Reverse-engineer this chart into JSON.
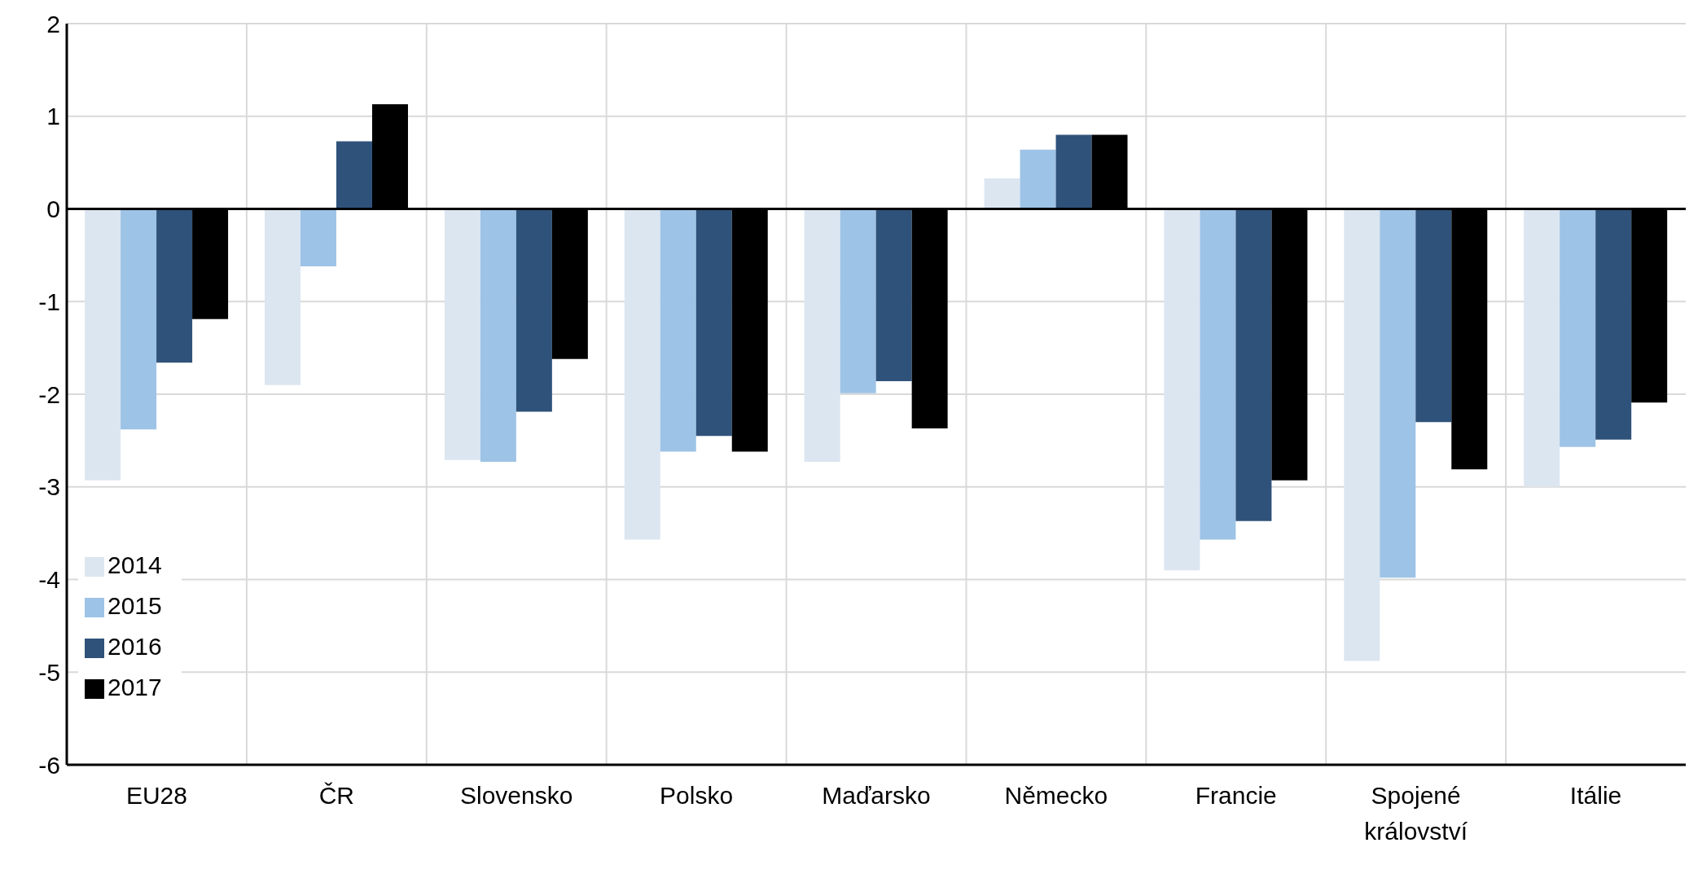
{
  "chart_data": {
    "type": "bar",
    "categories": [
      "EU28",
      "ČR",
      "Slovensko",
      "Polsko",
      "Maďarsko",
      "Německo",
      "Francie",
      "Spojené království",
      "Itálie"
    ],
    "series": [
      {
        "name": "2014",
        "color": "#dce6f1",
        "values": [
          -2.93,
          -1.9,
          -2.71,
          -3.57,
          -2.73,
          0.33,
          -3.9,
          -4.88,
          -3.0
        ]
      },
      {
        "name": "2015",
        "color": "#9dc3e6",
        "values": [
          -2.38,
          -0.62,
          -2.73,
          -2.62,
          -1.99,
          0.64,
          -3.57,
          -3.98,
          -2.57
        ]
      },
      {
        "name": "2016",
        "color": "#2f527a",
        "values": [
          -1.66,
          0.73,
          -2.19,
          -2.45,
          -1.86,
          0.8,
          -3.37,
          -2.3,
          -2.49
        ]
      },
      {
        "name": "2017",
        "color": "#000000",
        "values": [
          -1.19,
          1.13,
          -1.62,
          -2.62,
          -2.37,
          0.8,
          -2.93,
          -2.81,
          -2.09
        ]
      }
    ],
    "ylim": [
      -6,
      2
    ],
    "yticks": [
      -6,
      -5,
      -4,
      -3,
      -2,
      -1,
      0,
      1,
      2
    ],
    "grid": true,
    "legend": "bottom left",
    "ref_lines": [
      {
        "axis": "y",
        "value": 0,
        "color": "#000000"
      }
    ]
  }
}
